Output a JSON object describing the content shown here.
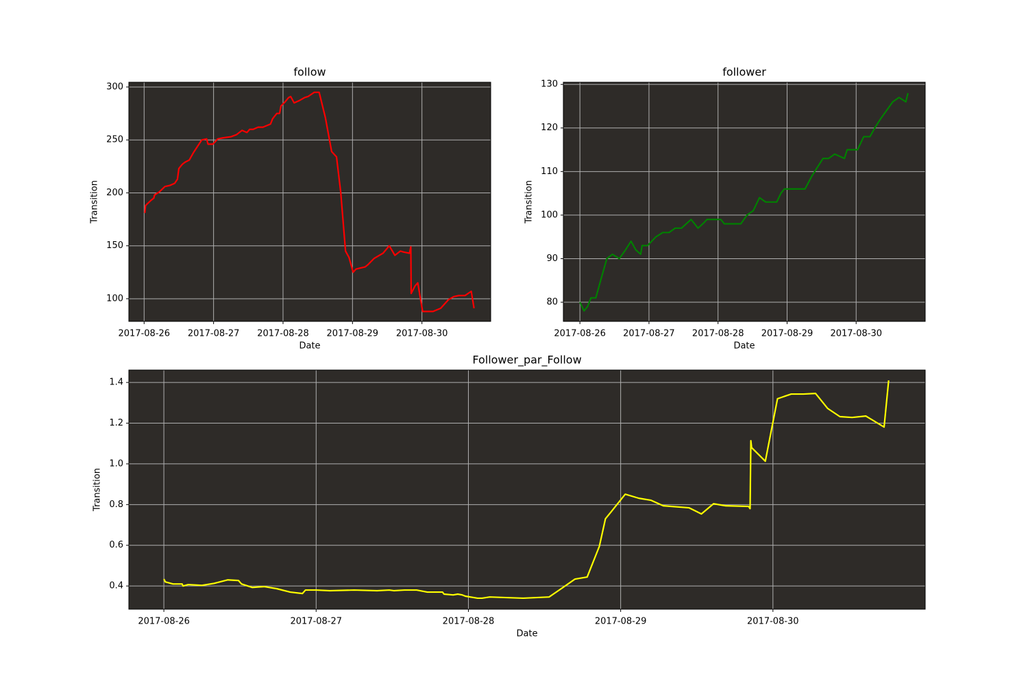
{
  "chart_data": [
    {
      "type": "line",
      "title": "follow",
      "x_label": "Date",
      "y_label": "Transition",
      "color": "#ff0000",
      "background": "#2e2b28",
      "grid": true,
      "x": [
        736567.01,
        736567.02,
        736567.1,
        736567.14,
        736567.15,
        736567.22,
        736567.3,
        736567.37,
        736567.44,
        736567.48,
        736567.5,
        736567.55,
        736567.59,
        736567.65,
        736567.71,
        736567.76,
        736567.83,
        736567.9,
        736567.92,
        736567.99,
        736568.06,
        736568.14,
        736568.25,
        736568.33,
        736568.41,
        736568.48,
        736568.52,
        736568.57,
        736568.64,
        736568.71,
        736568.82,
        736568.85,
        736568.91,
        736568.95,
        736568.97,
        736569.03,
        736569.08,
        736569.11,
        736569.16,
        736569.23,
        736569.31,
        736569.36,
        736569.45,
        736569.52,
        736569.61,
        736569.7,
        736569.77,
        736569.83,
        736569.9,
        736569.95,
        736570.01,
        736570.05,
        736570.11,
        736570.18,
        736570.22,
        736570.31,
        736570.44,
        736570.53,
        736570.61,
        736570.69,
        736570.74,
        736570.82,
        736570.84,
        736570.845,
        736570.9,
        736570.94,
        736571.01,
        736571.16,
        736571.27,
        736571.38,
        736571.46,
        736571.53,
        736571.62,
        736571.71,
        736571.75
      ],
      "values": [
        181,
        188,
        193,
        195,
        198,
        201,
        206,
        207,
        209,
        213,
        223,
        227,
        229,
        231,
        238,
        243,
        250,
        251,
        246,
        246,
        251,
        252,
        253,
        255,
        259,
        257,
        260,
        260,
        262,
        262,
        265,
        270,
        275,
        275,
        282,
        286,
        290,
        291,
        285,
        287,
        290,
        291,
        295,
        295,
        271,
        239,
        234,
        201,
        145,
        139,
        125,
        128,
        129,
        130,
        132,
        138,
        143,
        150,
        141,
        145,
        144,
        143,
        149,
        105,
        112,
        115,
        88,
        88,
        91,
        99,
        102,
        103,
        103,
        107,
        91
      ],
      "xlim": [
        736566.78,
        736571.99
      ],
      "xticks": [
        {
          "value": 736567,
          "label": "2017-08-26"
        },
        {
          "value": 736568,
          "label": "2017-08-27"
        },
        {
          "value": 736569,
          "label": "2017-08-28"
        },
        {
          "value": 736570,
          "label": "2017-08-29"
        },
        {
          "value": 736571,
          "label": "2017-08-30"
        }
      ],
      "ylim": [
        78.6,
        304.5
      ],
      "yticks": [
        100,
        150,
        200,
        250,
        300
      ]
    },
    {
      "type": "line",
      "title": "follower",
      "x_label": "Date",
      "y_label": "Transition",
      "color": "#008000",
      "background": "#2e2b28",
      "grid": true,
      "x": [
        736567.0,
        736567.06,
        736567.11,
        736567.16,
        736567.23,
        736567.3,
        736567.39,
        736567.47,
        736567.57,
        736567.66,
        736567.74,
        736567.81,
        736567.88,
        736567.9,
        736567.98,
        736568.1,
        736568.2,
        736568.29,
        736568.38,
        736568.47,
        736568.61,
        736568.71,
        736568.78,
        736568.84,
        736568.93,
        736569.04,
        736569.09,
        736569.33,
        736569.42,
        736569.51,
        736569.6,
        736569.69,
        736569.85,
        736569.91,
        736569.96,
        736570.26,
        736570.36,
        736570.52,
        736570.6,
        736570.69,
        736570.83,
        736570.87,
        736571.02,
        736571.11,
        736571.2,
        736571.27,
        736571.35,
        736571.53,
        736571.62,
        736571.72,
        736571.75
      ],
      "values": [
        80,
        78,
        79,
        81,
        81,
        85,
        90,
        91,
        90,
        92,
        94,
        92,
        91,
        93,
        93,
        95,
        96,
        96,
        97,
        97,
        99,
        97,
        98,
        99,
        99,
        99,
        98,
        98,
        100,
        101,
        104,
        103,
        103,
        105,
        106,
        106,
        109,
        113,
        113,
        114,
        113,
        115,
        115,
        118,
        118,
        120,
        122,
        126,
        127,
        126,
        128
      ],
      "xlim": [
        736566.76,
        736572.0
      ],
      "xticks": [
        {
          "value": 736567,
          "label": "2017-08-26"
        },
        {
          "value": 736568,
          "label": "2017-08-27"
        },
        {
          "value": 736569,
          "label": "2017-08-28"
        },
        {
          "value": 736570,
          "label": "2017-08-29"
        },
        {
          "value": 736571,
          "label": "2017-08-30"
        }
      ],
      "ylim": [
        75.6,
        130.5
      ],
      "yticks": [
        80,
        90,
        100,
        110,
        120,
        130
      ]
    },
    {
      "type": "line",
      "title": "Follower_par_Follow",
      "x_label": "Date",
      "y_label": "Transition",
      "color": "#ffff00",
      "background": "#2e2b28",
      "grid": true,
      "x": [
        736567.0,
        736567.01,
        736567.06,
        736567.12,
        736567.126,
        736567.16,
        736567.25,
        736567.33,
        736567.42,
        736567.49,
        736567.51,
        736567.58,
        736567.66,
        736567.74,
        736567.83,
        736567.91,
        736567.93,
        736568.0,
        736568.09,
        736568.25,
        736568.4,
        736568.48,
        736568.51,
        736568.58,
        736568.66,
        736568.73,
        736568.83,
        736568.84,
        736568.9,
        736568.93,
        736568.96,
        736568.98,
        736569.06,
        736569.09,
        736569.14,
        736569.36,
        736569.53,
        736569.61,
        736569.7,
        736569.78,
        736569.86,
        736569.9,
        736569.94,
        736570.03,
        736570.12,
        736570.2,
        736570.28,
        736570.45,
        736570.53,
        736570.61,
        736570.69,
        736570.84,
        736570.85,
        736570.855,
        736570.86,
        736570.95,
        736571.03,
        736571.12,
        736571.2,
        736571.28,
        736571.36,
        736571.44,
        736571.52,
        736571.61,
        736571.73,
        736571.76
      ],
      "values": [
        0.434,
        0.42,
        0.41,
        0.41,
        0.4,
        0.407,
        0.403,
        0.413,
        0.43,
        0.427,
        0.41,
        0.393,
        0.397,
        0.387,
        0.37,
        0.363,
        0.38,
        0.38,
        0.377,
        0.38,
        0.377,
        0.38,
        0.377,
        0.38,
        0.38,
        0.37,
        0.37,
        0.36,
        0.356,
        0.36,
        0.356,
        0.35,
        0.34,
        0.34,
        0.346,
        0.34,
        0.346,
        0.387,
        0.434,
        0.444,
        0.595,
        0.73,
        0.767,
        0.851,
        0.831,
        0.821,
        0.794,
        0.784,
        0.754,
        0.804,
        0.794,
        0.791,
        0.78,
        1.114,
        1.08,
        1.013,
        1.32,
        1.343,
        1.343,
        1.346,
        1.272,
        1.232,
        1.228,
        1.235,
        1.181,
        1.41
      ],
      "xlim": [
        736566.77,
        736572.0
      ],
      "xticks": [
        {
          "value": 736567,
          "label": "2017-08-26"
        },
        {
          "value": 736568,
          "label": "2017-08-27"
        },
        {
          "value": 736569,
          "label": "2017-08-28"
        },
        {
          "value": 736570,
          "label": "2017-08-29"
        },
        {
          "value": 736571,
          "label": "2017-08-30"
        }
      ],
      "ylim": [
        0.286,
        1.461
      ],
      "yticks": [
        0.4,
        0.6,
        0.8,
        {
          "value": 1.0,
          "label": "1.0"
        },
        1.2,
        1.4
      ]
    }
  ]
}
